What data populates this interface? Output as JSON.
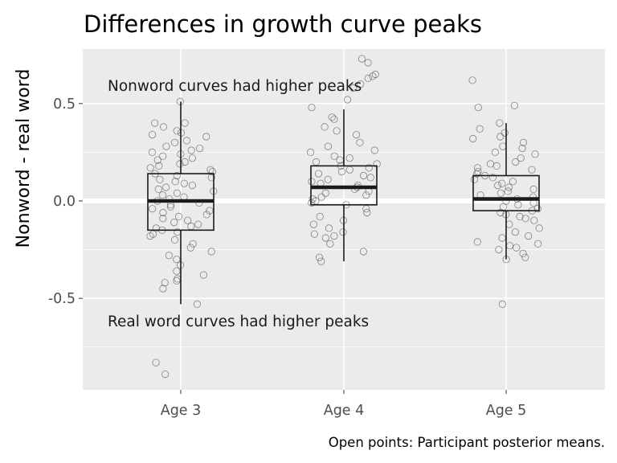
{
  "chart_data": {
    "type": "box",
    "title": "Differences in growth curve peaks",
    "ylabel": "Nonword - real word",
    "xlabel": "",
    "categories": [
      "Age 3",
      "Age 4",
      "Age 5"
    ],
    "ylim": [
      -0.97,
      0.78
    ],
    "yticks": [
      -0.5,
      0.0,
      0.5
    ],
    "ytick_labels": [
      "-0.5",
      "0.0",
      "0.5"
    ],
    "grid": true,
    "boxes": [
      {
        "category": "Age 3",
        "whisker_low": -0.53,
        "q1": -0.15,
        "median": 0.0,
        "q3": 0.14,
        "whisker_high": 0.51
      },
      {
        "category": "Age 4",
        "whisker_low": -0.31,
        "q1": -0.02,
        "median": 0.07,
        "q3": 0.18,
        "whisker_high": 0.47
      },
      {
        "category": "Age 5",
        "whisker_low": -0.3,
        "q1": -0.05,
        "median": 0.01,
        "q3": 0.13,
        "whisker_high": 0.4
      }
    ],
    "points": [
      {
        "category": "Age 3",
        "values": [
          0.51,
          0.4,
          0.4,
          0.38,
          0.36,
          0.35,
          0.34,
          0.33,
          0.31,
          0.3,
          0.28,
          0.27,
          0.26,
          0.25,
          0.24,
          0.23,
          0.22,
          0.21,
          0.2,
          0.19,
          0.18,
          0.17,
          0.16,
          0.15,
          0.14,
          0.13,
          0.12,
          0.11,
          0.1,
          0.09,
          0.08,
          0.07,
          0.06,
          0.05,
          0.04,
          0.03,
          0.02,
          0.01,
          0.0,
          -0.01,
          -0.02,
          -0.03,
          -0.04,
          -0.05,
          -0.06,
          -0.07,
          -0.08,
          -0.09,
          -0.1,
          -0.11,
          -0.12,
          -0.13,
          -0.14,
          -0.15,
          -0.16,
          -0.17,
          -0.18,
          -0.2,
          -0.22,
          -0.24,
          -0.26,
          -0.28,
          -0.3,
          -0.33,
          -0.36,
          -0.38,
          -0.4,
          -0.41,
          -0.42,
          -0.45,
          -0.53,
          -0.83,
          -0.89
        ]
      },
      {
        "category": "Age 4",
        "values": [
          0.73,
          0.71,
          0.65,
          0.64,
          0.63,
          0.6,
          0.58,
          0.52,
          0.48,
          0.43,
          0.42,
          0.38,
          0.36,
          0.34,
          0.3,
          0.28,
          0.26,
          0.25,
          0.23,
          0.22,
          0.21,
          0.2,
          0.19,
          0.18,
          0.17,
          0.16,
          0.15,
          0.14,
          0.13,
          0.12,
          0.11,
          0.1,
          0.09,
          0.08,
          0.07,
          0.06,
          0.05,
          0.04,
          0.03,
          0.02,
          0.01,
          0.0,
          -0.01,
          -0.02,
          -0.04,
          -0.06,
          -0.08,
          -0.1,
          -0.12,
          -0.14,
          -0.16,
          -0.17,
          -0.18,
          -0.19,
          -0.22,
          -0.26,
          -0.29,
          -0.31
        ]
      },
      {
        "category": "Age 5",
        "values": [
          0.62,
          0.49,
          0.48,
          0.4,
          0.37,
          0.35,
          0.33,
          0.32,
          0.3,
          0.28,
          0.27,
          0.25,
          0.24,
          0.22,
          0.2,
          0.19,
          0.18,
          0.17,
          0.16,
          0.15,
          0.14,
          0.13,
          0.12,
          0.11,
          0.1,
          0.09,
          0.08,
          0.07,
          0.06,
          0.05,
          0.04,
          0.03,
          0.02,
          0.01,
          0.0,
          -0.01,
          -0.02,
          -0.03,
          -0.04,
          -0.05,
          -0.06,
          -0.07,
          -0.08,
          -0.09,
          -0.1,
          -0.12,
          -0.14,
          -0.16,
          -0.18,
          -0.19,
          -0.21,
          -0.22,
          -0.23,
          -0.24,
          -0.25,
          -0.27,
          -0.29,
          -0.3,
          -0.53
        ]
      }
    ],
    "annotations": [
      {
        "text": "Nonword curves had higher peaks",
        "x": "Age 3",
        "y": 0.59
      },
      {
        "text": "Real word curves had higher peaks",
        "x": "Age 3",
        "y": -0.62
      }
    ],
    "caption": "Open points: Participant posterior means."
  },
  "colors": {
    "panel_background": "#ebebeb",
    "grid_major": "#ffffff",
    "box_line": "#1a1a1a",
    "point_stroke": "#555555"
  }
}
